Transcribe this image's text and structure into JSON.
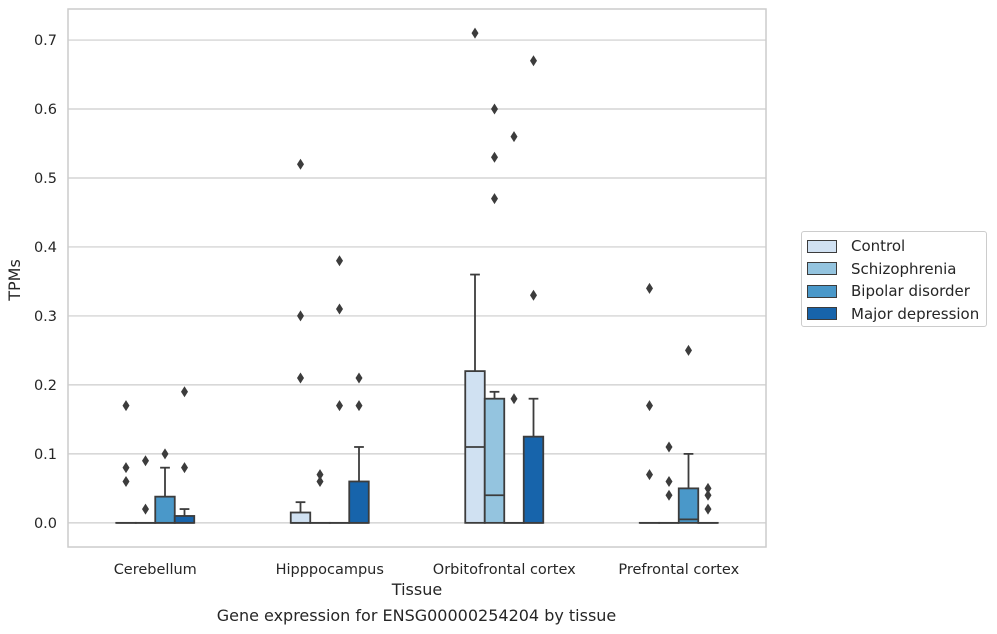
{
  "caption": "Gene expression for ENSG00000254204 by tissue",
  "chart_data": {
    "type": "boxplot",
    "xlabel": "Tissue",
    "ylabel": "TPMs",
    "ylim": [
      -0.035,
      0.745
    ],
    "yticks": [
      0.0,
      0.1,
      0.2,
      0.3,
      0.4,
      0.5,
      0.6,
      0.7
    ],
    "yticklabels": [
      "0.0",
      "0.1",
      "0.2",
      "0.3",
      "0.4",
      "0.5",
      "0.6",
      "0.7"
    ],
    "grid": "horizontal",
    "legend_position": "right",
    "categories": [
      "Cerebellum",
      "Hipppocampus",
      "Orbitofrontal cortex",
      "Prefrontal cortex"
    ],
    "series": [
      {
        "name": "Control",
        "color": "#d0e1f2",
        "boxes": [
          {
            "q1": 0.0,
            "median": 0.0,
            "q3": 0.0,
            "whislo": 0.0,
            "whishi": 0.0,
            "fliers": [
              0.17,
              0.08,
              0.06
            ]
          },
          {
            "q1": 0.0,
            "median": 0.0,
            "q3": 0.015,
            "whislo": 0.0,
            "whishi": 0.03,
            "fliers": [
              0.52,
              0.3,
              0.21
            ]
          },
          {
            "q1": 0.0,
            "median": 0.11,
            "q3": 0.22,
            "whislo": 0.0,
            "whishi": 0.36,
            "fliers": [
              0.71
            ]
          },
          {
            "q1": 0.0,
            "median": 0.0,
            "q3": 0.0,
            "whislo": 0.0,
            "whishi": 0.0,
            "fliers": [
              0.34,
              0.17,
              0.07
            ]
          }
        ]
      },
      {
        "name": "Schizophrenia",
        "color": "#94c4df",
        "boxes": [
          {
            "q1": 0.0,
            "median": 0.0,
            "q3": 0.0,
            "whislo": 0.0,
            "whishi": 0.0,
            "fliers": [
              0.09,
              0.02
            ]
          },
          {
            "q1": 0.0,
            "median": 0.0,
            "q3": 0.0,
            "whislo": 0.0,
            "whishi": 0.0,
            "fliers": [
              0.07,
              0.06
            ]
          },
          {
            "q1": 0.0,
            "median": 0.04,
            "q3": 0.18,
            "whislo": 0.0,
            "whishi": 0.19,
            "fliers": [
              0.6,
              0.53,
              0.47
            ]
          },
          {
            "q1": 0.0,
            "median": 0.0,
            "q3": 0.0,
            "whislo": 0.0,
            "whishi": 0.0,
            "fliers": [
              0.11,
              0.06,
              0.04
            ]
          }
        ]
      },
      {
        "name": "Bipolar disorder",
        "color": "#4a98c9",
        "boxes": [
          {
            "q1": 0.0,
            "median": 0.0,
            "q3": 0.038,
            "whislo": 0.0,
            "whishi": 0.08,
            "fliers": [
              0.1
            ]
          },
          {
            "q1": 0.0,
            "median": 0.0,
            "q3": 0.0,
            "whislo": 0.0,
            "whishi": 0.0,
            "fliers": [
              0.38,
              0.31,
              0.17
            ]
          },
          {
            "q1": 0.0,
            "median": 0.0,
            "q3": 0.0,
            "whislo": 0.0,
            "whishi": 0.0,
            "fliers": [
              0.56,
              0.18
            ]
          },
          {
            "q1": 0.0,
            "median": 0.005,
            "q3": 0.05,
            "whislo": 0.0,
            "whishi": 0.1,
            "fliers": [
              0.25
            ]
          }
        ]
      },
      {
        "name": "Major depression",
        "color": "#1764ab",
        "boxes": [
          {
            "q1": 0.0,
            "median": 0.0,
            "q3": 0.01,
            "whislo": 0.0,
            "whishi": 0.02,
            "fliers": [
              0.19,
              0.08
            ]
          },
          {
            "q1": 0.0,
            "median": 0.0,
            "q3": 0.06,
            "whislo": 0.0,
            "whishi": 0.11,
            "fliers": [
              0.21,
              0.17
            ]
          },
          {
            "q1": 0.0,
            "median": 0.0,
            "q3": 0.125,
            "whislo": 0.0,
            "whishi": 0.18,
            "fliers": [
              0.67,
              0.33
            ]
          },
          {
            "q1": 0.0,
            "median": 0.0,
            "q3": 0.0,
            "whislo": 0.0,
            "whishi": 0.0,
            "fliers": [
              0.05,
              0.04,
              0.02
            ]
          }
        ]
      }
    ]
  }
}
